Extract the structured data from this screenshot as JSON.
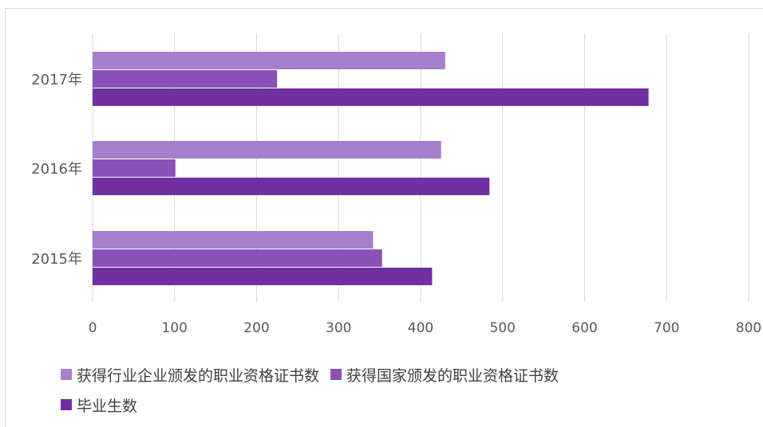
{
  "chart_data": {
    "type": "bar",
    "orientation": "horizontal",
    "categories": [
      "2017年",
      "2016年",
      "2015年"
    ],
    "series": [
      {
        "name": "获得行业企业颁发的职业资格证书数",
        "values": [
          430,
          425,
          342
        ],
        "color": "#A57FCB"
      },
      {
        "name": "获得国家颁发的职业资格证书数",
        "values": [
          225,
          101,
          353
        ],
        "color": "#8A52B8"
      },
      {
        "name": "毕业生数",
        "values": [
          678,
          484,
          414
        ],
        "color": "#7030A0"
      }
    ],
    "xlim": [
      0,
      800
    ],
    "xticks": [
      "0",
      "100",
      "200",
      "300",
      "400",
      "500",
      "600",
      "700",
      "800"
    ],
    "grid": true,
    "legend_position": "bottom",
    "title": "",
    "xlabel": "",
    "ylabel": ""
  }
}
